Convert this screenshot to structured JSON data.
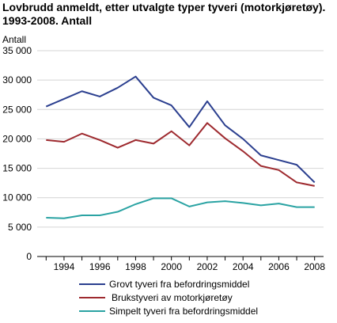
{
  "chart_data": {
    "type": "line",
    "title": "Lovbrudd anmeldt, etter utvalgte typer tyveri (motorkjøretøy).\n1993-2008. Antall",
    "title_lines": [
      "Lovbrudd anmeldt, etter utvalgte typer tyveri (motorkjøretøy).",
      "1993-2008. Antall"
    ],
    "ylabel": "Antall",
    "xlabel": "",
    "ylim": [
      0,
      35000
    ],
    "xlim": [
      1992.5,
      2008.5
    ],
    "grid": true,
    "legend_position": "bottom",
    "x": [
      1993,
      1994,
      1995,
      1996,
      1997,
      1998,
      1999,
      2000,
      2001,
      2002,
      2003,
      2004,
      2005,
      2006,
      2007,
      2008
    ],
    "x_tick_labels": [
      "1994",
      "1996",
      "1998",
      "2000",
      "2002",
      "2004",
      "2006",
      "2008"
    ],
    "y_tick_labels": [
      "0",
      "5 000",
      "10 000",
      "15 000",
      "20 000",
      "25 000",
      "30 000",
      "35 000"
    ],
    "series": [
      {
        "name": "Grovt tyveri fra befordringsmiddel",
        "color": "#2b3f8f",
        "values": [
          25500,
          26800,
          28100,
          27200,
          28700,
          30600,
          27000,
          25700,
          22000,
          26400,
          22300,
          20000,
          17200,
          16400,
          15600,
          12600
        ]
      },
      {
        "name": "Brukstyveri av motorkjøretøy",
        "color": "#9e2a2f",
        "values": [
          19800,
          19500,
          20900,
          19800,
          18500,
          19800,
          19200,
          21300,
          18900,
          22700,
          20100,
          17900,
          15400,
          14700,
          12600,
          12000
        ]
      },
      {
        "name": "Simpelt tyveri fra befordringsmiddel",
        "color": "#2aa3a3",
        "values": [
          6600,
          6500,
          7000,
          7000,
          7600,
          8900,
          9900,
          9900,
          8500,
          9200,
          9400,
          9100,
          8700,
          9000,
          8400,
          8400
        ]
      }
    ]
  }
}
